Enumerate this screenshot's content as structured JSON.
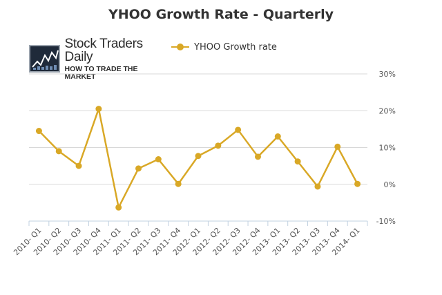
{
  "chart_data": {
    "type": "line",
    "title": "YHOO Growth Rate - Quarterly",
    "categories": [
      "2010- Q1",
      "2010- Q2",
      "2010- Q3",
      "2010- Q4",
      "2011- Q1",
      "2011- Q2",
      "2011- Q3",
      "2011- Q4",
      "2012- Q1",
      "2012- Q2",
      "2012- Q3",
      "2012- Q4",
      "2013- Q1",
      "2013- Q2",
      "2013- Q3",
      "2013- Q4",
      "2014- Q1"
    ],
    "series": [
      {
        "name": "YHOO Growth rate",
        "color": "#d9a826",
        "values": [
          14.5,
          9.0,
          5.0,
          20.5,
          -6.3,
          4.3,
          6.8,
          0.1,
          7.7,
          10.5,
          14.8,
          7.5,
          13.0,
          6.2,
          -0.6,
          10.2,
          0.1
        ]
      }
    ],
    "y_axis": {
      "position": "right",
      "ylim": [
        -10,
        30
      ],
      "ticks": [
        -10,
        0,
        10,
        20,
        30
      ],
      "tick_labels": [
        "-10%",
        "0%",
        "10%",
        "20%",
        "30%"
      ]
    },
    "xlabel": "",
    "ylabel": "",
    "grid": true,
    "legend_position": "top-center",
    "colors": {
      "line": "#d9a826",
      "grid": "#d8d8d8",
      "axis": "#c0d0e0",
      "text": "#555555"
    }
  },
  "logo": {
    "name": "Stock Traders Daily",
    "tagline": "HOW TO TRADE THE MARKET"
  }
}
